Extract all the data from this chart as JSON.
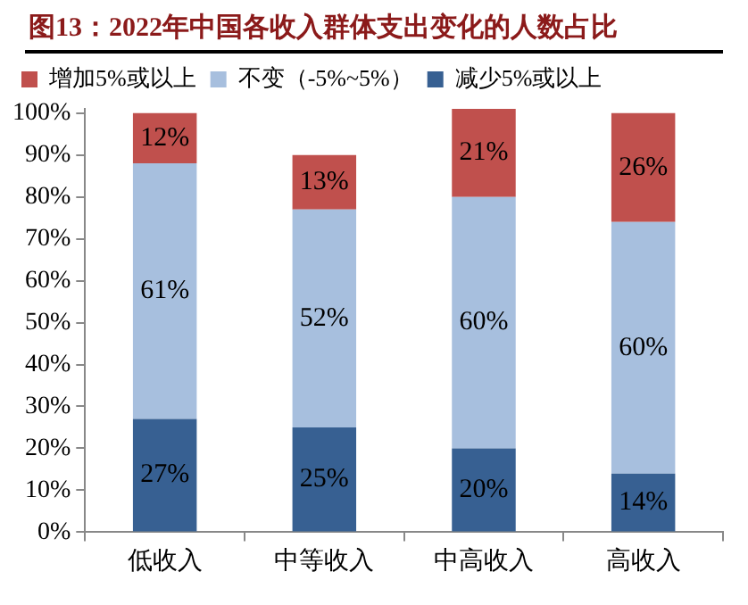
{
  "chart_data": {
    "type": "bar",
    "stacked": true,
    "title": "图13：2022年中国各收入群体支出变化的人数占比",
    "categories": [
      "低收入",
      "中等收入",
      "中高收入",
      "高收入"
    ],
    "series": [
      {
        "name": "减少5%或以上",
        "color": "#376092",
        "values": [
          27,
          25,
          20,
          14
        ],
        "value_labels": [
          "27%",
          "25%",
          "20%",
          "14%"
        ]
      },
      {
        "name": "不变（-5%~5%）",
        "color": "#a7bfde",
        "values": [
          61,
          52,
          60,
          60
        ],
        "value_labels": [
          "61%",
          "52%",
          "60%",
          "60%"
        ]
      },
      {
        "name": "增加5%或以上",
        "color": "#c0504d",
        "values": [
          12,
          13,
          21,
          26
        ],
        "value_labels": [
          "12%",
          "13%",
          "21%",
          "26%"
        ]
      }
    ],
    "ylim": [
      0,
      101
    ],
    "yticks": [
      {
        "value": 0,
        "label": "0%"
      },
      {
        "value": 10,
        "label": "10%"
      },
      {
        "value": 20,
        "label": "20%"
      },
      {
        "value": 30,
        "label": "30%"
      },
      {
        "value": 40,
        "label": "40%"
      },
      {
        "value": 50,
        "label": "50%"
      },
      {
        "value": 60,
        "label": "60%"
      },
      {
        "value": 70,
        "label": "70%"
      },
      {
        "value": 80,
        "label": "80%"
      },
      {
        "value": 90,
        "label": "90%"
      },
      {
        "value": 100,
        "label": "100%"
      }
    ],
    "grid": false,
    "legend": "top"
  }
}
